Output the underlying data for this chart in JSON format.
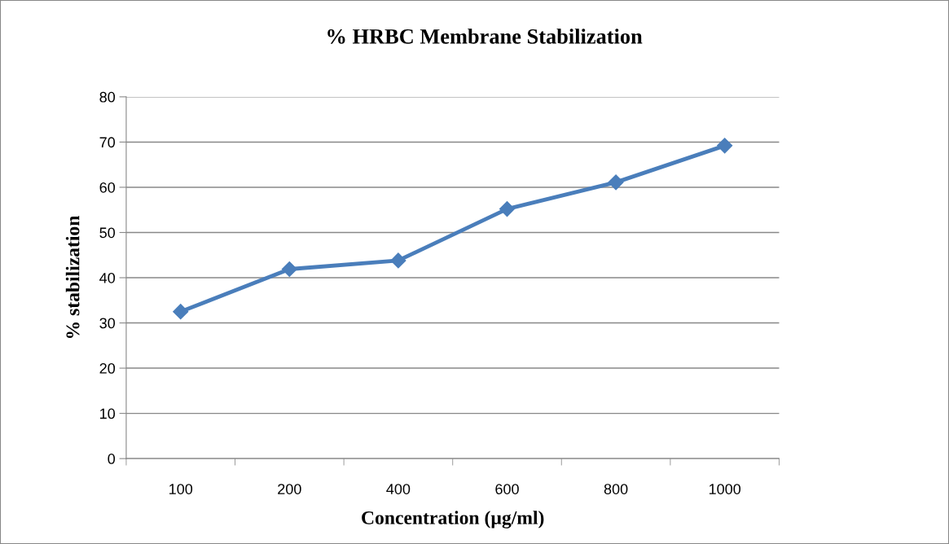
{
  "chart_data": {
    "type": "line",
    "title": "% HRBC Membrane Stabilization",
    "xlabel": "Concentration (µg/ml)",
    "ylabel": "% stabilization",
    "categories": [
      "100",
      "200",
      "400",
      "600",
      "800",
      "1000"
    ],
    "series": [
      {
        "color": "#4a7ebb",
        "values": [
          32.5,
          41.9,
          43.8,
          55.2,
          61.1,
          69.2
        ]
      }
    ],
    "ylim": [
      0,
      80
    ],
    "yticks": [
      0,
      10,
      20,
      30,
      40,
      50,
      60,
      70,
      80
    ],
    "grid": "y",
    "legend": false,
    "marker": "diamond",
    "line_style": "solid"
  }
}
